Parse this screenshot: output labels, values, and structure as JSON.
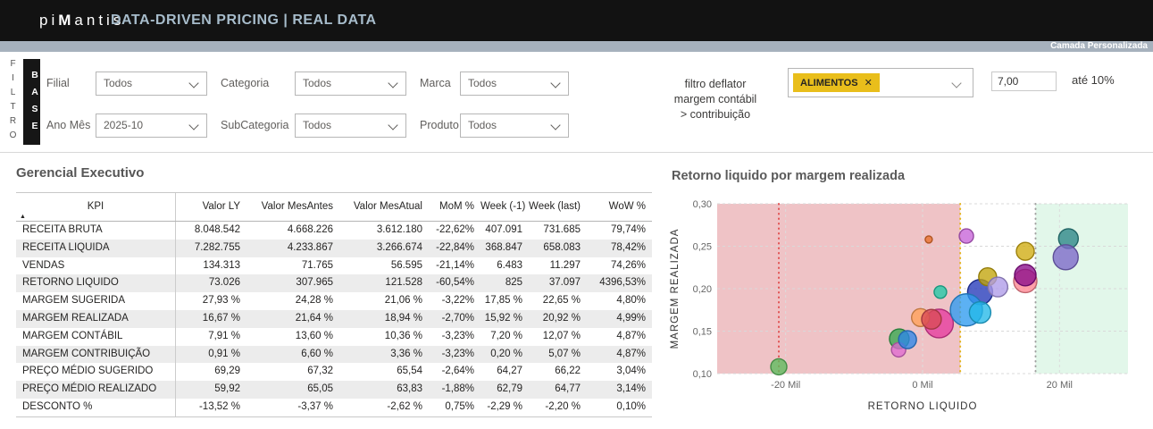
{
  "header": {
    "brand_pre": "pi",
    "brand_m": "M",
    "brand_post": "antis",
    "title": "DATA-DRIVEN PRICING | REAL DATA",
    "subbar_label": "Camada Personalizada"
  },
  "filters": {
    "vertical_label": "FILTRO",
    "base_label": "BASE",
    "row1": [
      {
        "label": "Filial",
        "value": "Todos"
      },
      {
        "label": "Categoria",
        "value": "Todos"
      },
      {
        "label": "Marca",
        "value": "Todos"
      }
    ],
    "row2": [
      {
        "label": "Ano Mês",
        "value": "2025-10"
      },
      {
        "label": "SubCategoria",
        "value": "Todos"
      },
      {
        "label": "Produto",
        "value": "Todos"
      }
    ],
    "deflator": {
      "label_line1": "filtro deflator",
      "label_line2": "margem contábil",
      "label_line3": "> contribuição",
      "tag": "ALIMENTOS",
      "tag_close": "✕",
      "value": "7,00",
      "suffix": "até 10%"
    }
  },
  "table": {
    "title": "Gerencial Executivo",
    "sort_icon": "▲",
    "columns": [
      "KPI",
      "Valor LY",
      "Valor MesAntes",
      "Valor MesAtual",
      "MoM %",
      "Week (-1)",
      "Week (last)",
      "WoW %"
    ],
    "rows": [
      [
        "RECEITA BRUTA",
        "8.048.542",
        "4.668.226",
        "3.612.180",
        "-22,62%",
        "407.091",
        "731.685",
        "79,74%"
      ],
      [
        "RECEITA LIQUIDA",
        "7.282.755",
        "4.233.867",
        "3.266.674",
        "-22,84%",
        "368.847",
        "658.083",
        "78,42%"
      ],
      [
        "VENDAS",
        "134.313",
        "71.765",
        "56.595",
        "-21,14%",
        "6.483",
        "11.297",
        "74,26%"
      ],
      [
        "RETORNO LIQUIDO",
        "73.026",
        "307.965",
        "121.528",
        "-60,54%",
        "825",
        "37.097",
        "4396,53%"
      ],
      [
        "MARGEM SUGERIDA",
        "27,93 %",
        "24,28 %",
        "21,06 %",
        "-3,22%",
        "17,85 %",
        "22,65 %",
        "4,80%"
      ],
      [
        "MARGEM REALIZADA",
        "16,67 %",
        "21,64 %",
        "18,94 %",
        "-2,70%",
        "15,92 %",
        "20,92 %",
        "4,99%"
      ],
      [
        "MARGEM CONTÁBIL",
        "7,91 %",
        "13,60 %",
        "10,36 %",
        "-3,23%",
        "7,20 %",
        "12,07 %",
        "4,87%"
      ],
      [
        "MARGEM CONTRIBUIÇÃO",
        "0,91 %",
        "6,60 %",
        "3,36 %",
        "-3,23%",
        "0,20 %",
        "5,07 %",
        "4,87%"
      ],
      [
        "PREÇO MÉDIO SUGERIDO",
        "69,29",
        "67,32",
        "65,54",
        "-2,64%",
        "64,27",
        "66,22",
        "3,04%"
      ],
      [
        "PREÇO MÉDIO REALIZADO",
        "59,92",
        "65,05",
        "63,83",
        "-1,88%",
        "62,79",
        "64,77",
        "3,14%"
      ],
      [
        "DESCONTO %",
        "-13,52 %",
        "-3,37 %",
        "-2,62 %",
        "0,75%",
        "-2,29 %",
        "-2,20 %",
        "0,10%"
      ]
    ]
  },
  "chart_data": {
    "type": "scatter",
    "title": "Retorno liquido por margem realizada",
    "xlabel": "RETORNO LIQUIDO",
    "ylabel": "MARGEM REALIZADA",
    "x_unit": "Mil",
    "xlim": [
      -30,
      30
    ],
    "ylim": [
      0.1,
      0.3
    ],
    "grid": true,
    "x_ticks": [
      {
        "value": -20,
        "label": "-20 Mil"
      },
      {
        "value": 0,
        "label": "0 Mil"
      },
      {
        "value": 20,
        "label": "20 Mil"
      }
    ],
    "y_ticks": [
      {
        "value": 0.1,
        "label": "0,10"
      },
      {
        "value": 0.15,
        "label": "0,15"
      },
      {
        "value": 0.2,
        "label": "0,20"
      },
      {
        "value": 0.25,
        "label": "0,25"
      },
      {
        "value": 0.3,
        "label": "0,30"
      }
    ],
    "regions": [
      {
        "name": "loss-zone",
        "x1": -30,
        "x2": 5.5,
        "color": "#efc3c6"
      },
      {
        "name": "target-zone",
        "x1": 16.5,
        "x2": 30,
        "color": "#e2f7ea"
      }
    ],
    "ref_lines": [
      {
        "x": -21,
        "color": "#e05252"
      },
      {
        "x": 5.5,
        "color": "#e3b41c"
      },
      {
        "x": 16.5,
        "color": "#a0a0a0"
      }
    ],
    "points": [
      {
        "name": "bubble-green-left",
        "x": -21.0,
        "y": 0.108,
        "r": 9,
        "color": "#5cbb5c"
      },
      {
        "name": "bubble-green-mid",
        "x": -3.4,
        "y": 0.141,
        "r": 11,
        "color": "#35a84e"
      },
      {
        "name": "bubble-pink-small",
        "x": -3.5,
        "y": 0.128,
        "r": 8,
        "color": "#df6ad0"
      },
      {
        "name": "bubble-blue-mid",
        "x": -2.2,
        "y": 0.14,
        "r": 10,
        "color": "#2e86e8"
      },
      {
        "name": "bubble-magenta-big",
        "x": 2.4,
        "y": 0.159,
        "r": 16,
        "color": "#e53a9e"
      },
      {
        "name": "bubble-orange-mid",
        "x": -0.3,
        "y": 0.166,
        "r": 10,
        "color": "#ffa057"
      },
      {
        "name": "bubble-red",
        "x": 1.3,
        "y": 0.164,
        "r": 11,
        "color": "#d84a55"
      },
      {
        "name": "bubble-teal-small",
        "x": 2.6,
        "y": 0.196,
        "r": 7,
        "color": "#20c9a7"
      },
      {
        "name": "bubble-orange-dot",
        "x": 0.9,
        "y": 0.258,
        "r": 4,
        "color": "#e8702a"
      },
      {
        "name": "bubble-orchid-top",
        "x": 6.4,
        "y": 0.262,
        "r": 8,
        "color": "#c763d8"
      },
      {
        "name": "bubble-navy",
        "x": 8.4,
        "y": 0.196,
        "r": 14,
        "color": "#2438b8"
      },
      {
        "name": "bubble-gold",
        "x": 9.5,
        "y": 0.214,
        "r": 10,
        "color": "#c2a40a"
      },
      {
        "name": "bubble-periwinkle",
        "x": 11.0,
        "y": 0.202,
        "r": 11,
        "color": "#ae9be8"
      },
      {
        "name": "bubble-blue-big",
        "x": 6.4,
        "y": 0.175,
        "r": 18,
        "color": "#2e9bf0"
      },
      {
        "name": "bubble-cyan",
        "x": 8.4,
        "y": 0.172,
        "r": 12,
        "color": "#22b8e8"
      },
      {
        "name": "bubble-gold-right",
        "x": 15.0,
        "y": 0.244,
        "r": 10,
        "color": "#d0ac10"
      },
      {
        "name": "bubble-salmon",
        "x": 15.0,
        "y": 0.209,
        "r": 13,
        "color": "#ff8591"
      },
      {
        "name": "bubble-dark-purple",
        "x": 15.0,
        "y": 0.216,
        "r": 12,
        "color": "#8a0d8a"
      },
      {
        "name": "bubble-teal-right",
        "x": 21.3,
        "y": 0.259,
        "r": 11,
        "color": "#2a8585"
      },
      {
        "name": "bubble-purple-right",
        "x": 20.9,
        "y": 0.237,
        "r": 14,
        "color": "#7b68c8"
      }
    ]
  }
}
